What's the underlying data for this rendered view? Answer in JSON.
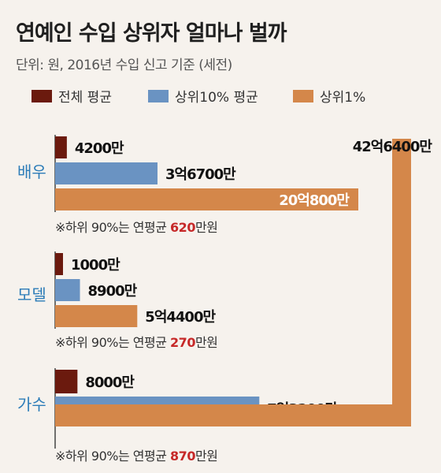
{
  "title": "연예인 수입 상위자 얼마나 벌까",
  "subtitle": "단위: 원, 2016년 수입 신고 기준 (세전)",
  "colors": {
    "average": "#6b1a0e",
    "top10": "#6a93c2",
    "top1": "#d4874a",
    "category_text": "#2c7cb8",
    "highlight": "#c62828"
  },
  "chart_data": {
    "type": "bar",
    "orientation": "horizontal",
    "unit": "원",
    "categories": [
      "배우",
      "모델",
      "가수"
    ],
    "series": [
      {
        "name": "전체 평균",
        "values": [
          42000000,
          10000000,
          80000000
        ],
        "labels": [
          "4200만",
          "1000만",
          "8000만"
        ]
      },
      {
        "name": "상위10% 평균",
        "values": [
          367000000,
          89000000,
          732000000
        ],
        "labels": [
          "3억6700만",
          "8900만",
          "7억3200만"
        ]
      },
      {
        "name": "상위1%",
        "values": [
          2008000000,
          544000000,
          4264000000
        ],
        "labels": [
          "20억800만",
          "5억4400만",
          "42억6400만"
        ]
      }
    ],
    "notes": [
      {
        "prefix": "※하위 90%는 연평균 ",
        "value": "620",
        "suffix": "만원"
      },
      {
        "prefix": "※하위 90%는 연평균 ",
        "value": "270",
        "suffix": "만원"
      },
      {
        "prefix": "※하위 90%는 연평균 ",
        "value": "870",
        "suffix": "만원"
      }
    ],
    "legend_position": "top",
    "grid": false
  }
}
